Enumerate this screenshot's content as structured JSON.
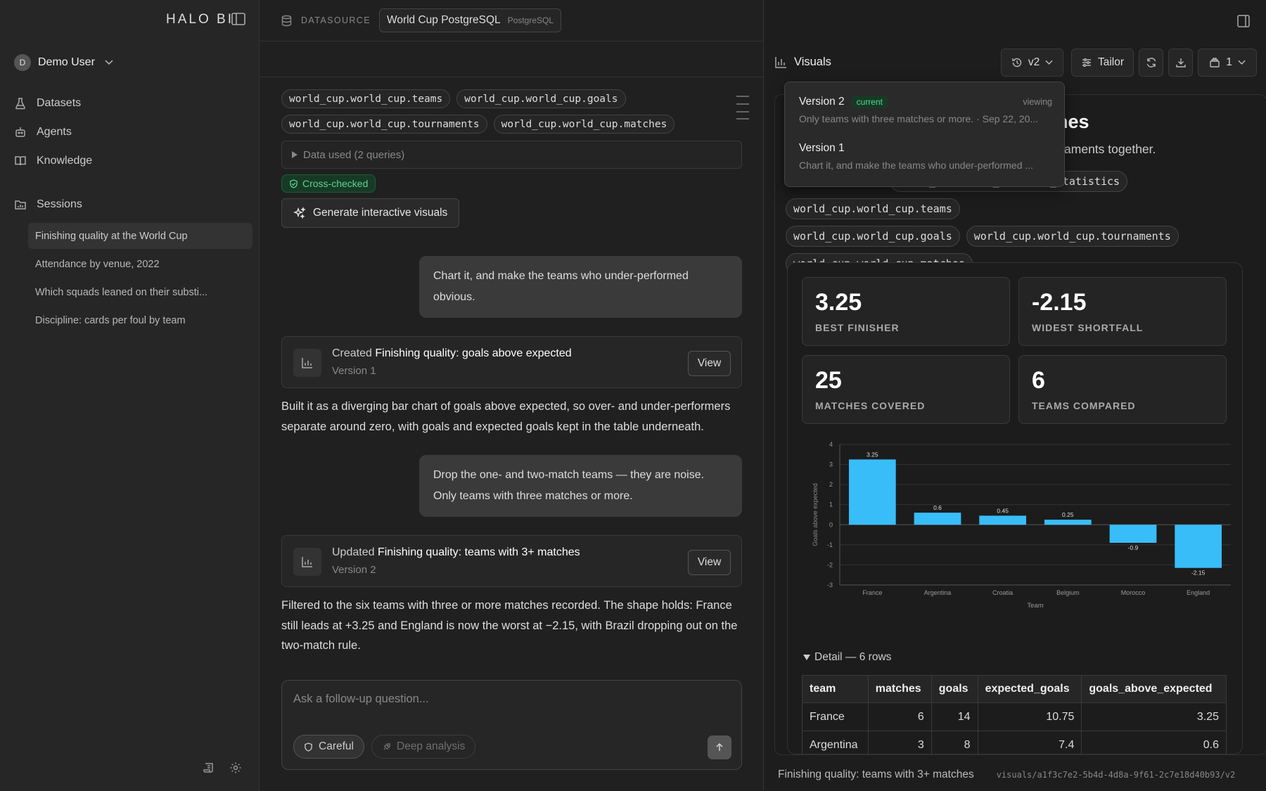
{
  "app": {
    "logo": "HALO BI"
  },
  "sidebar": {
    "user": {
      "initial": "D",
      "name": "Demo User"
    },
    "nav": [
      {
        "label": "Datasets",
        "icon": "flask-icon"
      },
      {
        "label": "Agents",
        "icon": "bot-icon"
      },
      {
        "label": "Knowledge",
        "icon": "book-icon"
      }
    ],
    "sessions_label": "Sessions",
    "sessions": [
      "Finishing quality at the World Cup",
      "Attendance by venue, 2022",
      "Which squads leaned on their substi...",
      "Discipline: cards per foul by team"
    ]
  },
  "datasource": {
    "label": "DATASOURCE",
    "name": "World Cup PostgreSQL",
    "type": "PostgreSQL"
  },
  "chat": {
    "tags": [
      "world_cup.world_cup.teams",
      "world_cup.world_cup.goals",
      "world_cup.world_cup.tournaments",
      "world_cup.world_cup.matches"
    ],
    "data_used": "Data used (2 queries)",
    "cross_checked": "Cross-checked",
    "generate_label": "Generate interactive visuals",
    "msg1": "Chart it, and make the teams who under-performed obvious.",
    "card1": {
      "action": "Created",
      "title": "Finishing quality: goals above expected",
      "version": "Version 1",
      "view": "View"
    },
    "para1": "Built it as a diverging bar chart of goals above expected, so over- and under-performers separate around zero, with goals and expected goals kept in the table underneath.",
    "msg2": "Drop the one- and two-match teams — they are noise. Only teams with three matches or more.",
    "card2": {
      "action": "Updated",
      "title": "Finishing quality: teams with 3+ matches",
      "version": "Version 2",
      "view": "View"
    },
    "para2": "Filtered to the six teams with three or more matches recorded. The shape holds: France still leads at +3.25 and England is now the worst at −2.15, with Brazil dropping out on the two-match rule.",
    "composer": {
      "placeholder": "Ask a follow-up question...",
      "careful": "Careful",
      "deep": "Deep analysis"
    }
  },
  "visuals": {
    "header": "Visuals",
    "version_btn": "v2",
    "tailor_btn": "Tailor",
    "layers_count": "1",
    "title_partial": "tches",
    "desc_partial": "ournaments together.",
    "tags": [
      "world_cup.world_cup.team_statistics",
      "world_cup.world_cup.teams",
      "world_cup.world_cup.goals",
      "world_cup.world_cup.tournaments",
      "world_cup.world_cup.matches"
    ],
    "kpis": [
      {
        "value": "3.25",
        "label": "BEST FINISHER"
      },
      {
        "value": "-2.15",
        "label": "WIDEST SHORTFALL"
      },
      {
        "value": "25",
        "label": "MATCHES COVERED"
      },
      {
        "value": "6",
        "label": "TEAMS COMPARED"
      }
    ],
    "detail_label": "Detail — 6 rows",
    "table": {
      "columns": [
        "team",
        "matches",
        "goals",
        "expected_goals",
        "goals_above_expected"
      ],
      "rows": [
        [
          "France",
          "6",
          "14",
          "10.75",
          "3.25"
        ],
        [
          "Argentina",
          "3",
          "8",
          "7.4",
          "0.6"
        ]
      ]
    },
    "footer_name": "Finishing quality: teams with 3+ matches",
    "footer_path": "visuals/a1f3c7e2-5b4d-4d8a-9f61-2c7e18d40b93/v2"
  },
  "popover": {
    "versions": [
      {
        "name": "Version 2",
        "badge": "current",
        "status": "viewing",
        "desc": "Only teams with three matches or more. · Sep 22, 20..."
      },
      {
        "name": "Version 1",
        "desc": "Chart it, and make the teams who under-performed ..."
      }
    ]
  },
  "chart_data": {
    "type": "bar",
    "categories": [
      "France",
      "Argentina",
      "Croatia",
      "Belgium",
      "Morocco",
      "England"
    ],
    "values": [
      3.25,
      0.6,
      0.45,
      0.25,
      -0.9,
      -2.15
    ],
    "xlabel": "Team",
    "ylabel": "Goals above expected",
    "ylim": [
      -3,
      4
    ],
    "yticks": [
      4,
      3,
      2,
      1,
      0,
      -1,
      -2,
      -3
    ],
    "bar_color": "#38bdf8",
    "grid": true
  }
}
